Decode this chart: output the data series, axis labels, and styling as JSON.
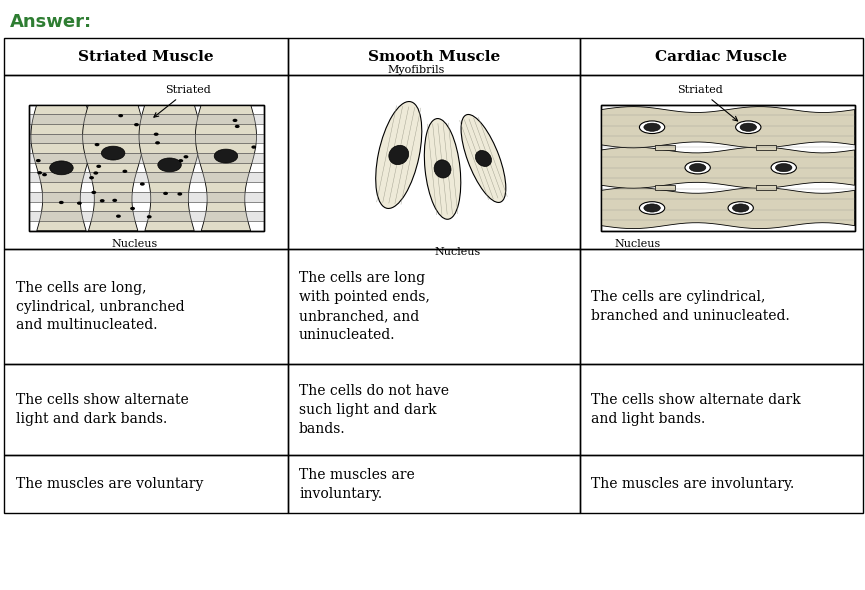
{
  "title": "Answer:",
  "title_color": "#2e7d32",
  "title_fontsize": 13,
  "headers": [
    "Striated Muscle",
    "Smooth Muscle",
    "Cardiac Muscle"
  ],
  "rows": [
    [
      "The cells are long,\ncylindrical, unbranched\nand multinucleated.",
      "The cells are long\nwith pointed ends,\nunbranched, and\nuninucleated.",
      "The cells are cylindrical,\nbranched and uninucleated."
    ],
    [
      "The cells show alternate\nlight and dark bands.",
      "The cells do not have\nsuch light and dark\nbands.",
      "The cells show alternate dark\nand light bands."
    ],
    [
      "The muscles are voluntary",
      "The muscles are\ninvoluntary.",
      "The muscles are involuntary."
    ]
  ],
  "bg_color": "#ffffff",
  "text_fontsize": 10,
  "header_fontsize": 11
}
